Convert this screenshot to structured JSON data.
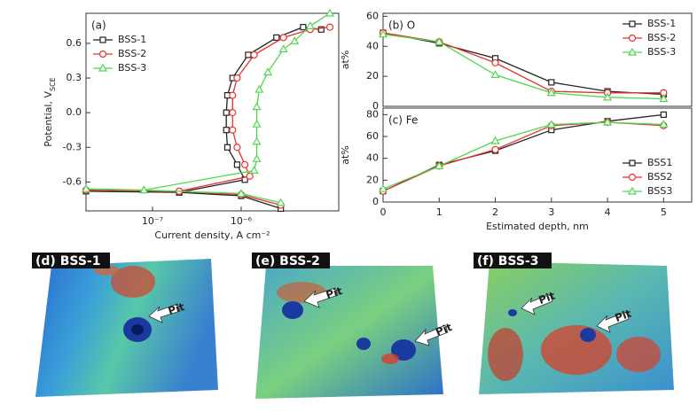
{
  "chart_data": [
    {
      "type": "line",
      "title": "(a)",
      "xscale": "log",
      "xlim": [
        1.78e-08,
        1.26e-05
      ],
      "ylim": [
        -0.85,
        0.86
      ],
      "xticks": [
        {
          "value": 1e-07,
          "label": "10⁻⁷"
        },
        {
          "value": 1e-06,
          "label": "10⁻⁶"
        }
      ],
      "yticks": [
        -0.6,
        -0.3,
        {
          "value": 0,
          "label": "0.0"
        },
        0.3,
        0.6
      ],
      "xlabel": "Current density, A cm⁻²",
      "ylabel": "Potential, V",
      "ylabel_sub": "SCE",
      "legend": "upper left",
      "series": [
        {
          "name": "BSS-1",
          "color": "#222222",
          "marker": "square",
          "x": [
            2.8e-06,
            1e-06,
            2e-07,
            1.78e-08,
            2e-07,
            1.1e-06,
            9e-07,
            7e-07,
            6.8e-07,
            6.8e-07,
            7e-07,
            8e-07,
            1.2e-06,
            2.5e-06,
            5e-06,
            8e-06
          ],
          "values": [
            -0.83,
            -0.72,
            -0.69,
            -0.68,
            -0.69,
            -0.58,
            -0.45,
            -0.3,
            -0.15,
            0,
            0.15,
            0.3,
            0.5,
            0.65,
            0.74,
            0.72
          ]
        },
        {
          "name": "BSS-2",
          "color": "#e8312f",
          "marker": "circle",
          "x": [
            2.8e-06,
            1e-06,
            2e-07,
            1.78e-08,
            2e-07,
            1.25e-06,
            1.1e-06,
            9e-07,
            8e-07,
            8e-07,
            8e-07,
            9e-07,
            1.4e-06,
            3e-06,
            6e-06,
            1e-05
          ],
          "values": [
            -0.8,
            -0.71,
            -0.68,
            -0.67,
            -0.68,
            -0.55,
            -0.45,
            -0.3,
            -0.15,
            0,
            0.15,
            0.3,
            0.5,
            0.65,
            0.72,
            0.74
          ]
        },
        {
          "name": "BSS-3",
          "color": "#4fd84f",
          "marker": "triangle",
          "x": [
            2.8e-06,
            1e-06,
            8e-08,
            1.78e-08,
            8e-08,
            1.4e-06,
            1.5e-06,
            1.5e-06,
            1.5e-06,
            1.5e-06,
            1.6e-06,
            2e-06,
            3e-06,
            4e-06,
            6e-06,
            1e-05
          ],
          "values": [
            -0.78,
            -0.7,
            -0.67,
            -0.66,
            -0.67,
            -0.5,
            -0.4,
            -0.25,
            -0.1,
            0.05,
            0.2,
            0.35,
            0.55,
            0.62,
            0.75,
            0.86
          ]
        }
      ]
    },
    {
      "type": "line",
      "title": "(b) O",
      "xlim": [
        0,
        5.5
      ],
      "ylim": [
        0,
        62
      ],
      "yticks": [
        0,
        20,
        40,
        60
      ],
      "ylabel": "at%",
      "legend": "upper right",
      "x": [
        0,
        1,
        2,
        3,
        4,
        5
      ],
      "series": [
        {
          "name": "BSS-1",
          "color": "#222222",
          "marker": "square",
          "values": [
            49,
            42,
            32,
            16,
            10,
            8
          ]
        },
        {
          "name": "BSS-2",
          "color": "#e8312f",
          "marker": "circle",
          "values": [
            49,
            43,
            29,
            10,
            9,
            9
          ]
        },
        {
          "name": "BSS-3",
          "color": "#4fd84f",
          "marker": "triangle",
          "values": [
            48,
            43,
            21,
            9,
            6,
            5
          ]
        }
      ]
    },
    {
      "type": "line",
      "title": "(c) Fe",
      "xlim": [
        0,
        5.5
      ],
      "ylim": [
        0,
        86
      ],
      "xticks": [
        0,
        1,
        2,
        3,
        4,
        5
      ],
      "yticks": [
        0,
        20,
        40,
        60,
        80
      ],
      "xlabel": "Estimated depth, nm",
      "ylabel": "at%",
      "legend": "lower right",
      "x": [
        0,
        1,
        2,
        3,
        4,
        5
      ],
      "series": [
        {
          "name": "BSS1",
          "color": "#222222",
          "marker": "square",
          "values": [
            10,
            34,
            47,
            66,
            74,
            80
          ]
        },
        {
          "name": "BSS2",
          "color": "#e8312f",
          "marker": "circle",
          "values": [
            10,
            33,
            48,
            70,
            73,
            70
          ]
        },
        {
          "name": "BSS3",
          "color": "#4fd84f",
          "marker": "triangle",
          "values": [
            12,
            33,
            56,
            71,
            73,
            71
          ]
        }
      ]
    }
  ],
  "panels": [
    {
      "label": "(d) BSS-1",
      "pits": [
        "Pit"
      ]
    },
    {
      "label": "(e) BSS-2",
      "pits": [
        "Pit",
        "Pit"
      ]
    },
    {
      "label": "(f) BSS-3",
      "pits": [
        "Pit",
        "Pit"
      ]
    }
  ]
}
